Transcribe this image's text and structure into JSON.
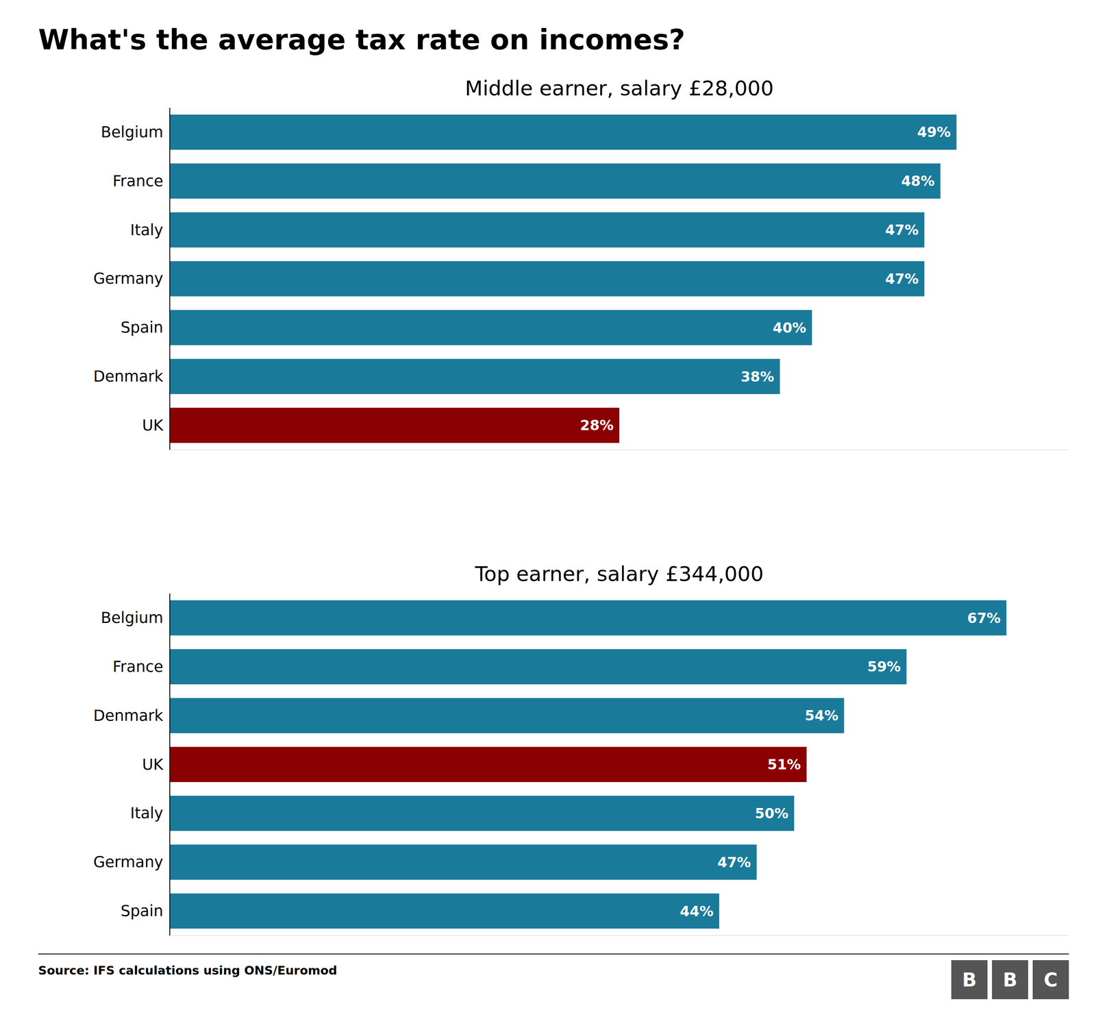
{
  "title": "What's the average tax rate on incomes?",
  "annotations": [
    "Source: IFS calculations using ONS/Euromod",
    "B",
    "B",
    "C"
  ],
  "chart_data": [
    {
      "type": "bar",
      "orientation": "horizontal",
      "subtitle": "Middle earner, salary £28,000",
      "categories": [
        "Belgium",
        "France",
        "Italy",
        "Germany",
        "Spain",
        "Denmark",
        "UK"
      ],
      "values": [
        49,
        48,
        47,
        47,
        40,
        38,
        28
      ],
      "value_labels": [
        "49%",
        "48%",
        "47%",
        "47%",
        "40%",
        "38%",
        "28%"
      ],
      "colors": [
        "#1a7a9a",
        "#1a7a9a",
        "#1a7a9a",
        "#1a7a9a",
        "#1a7a9a",
        "#1a7a9a",
        "#8b0000"
      ],
      "xlim": [
        0,
        56
      ],
      "xticks": [],
      "grid": false,
      "data_labels": true,
      "tick_labels": "y"
    },
    {
      "type": "bar",
      "orientation": "horizontal",
      "subtitle": "Top earner, salary £344,000",
      "categories": [
        "Belgium",
        "France",
        "Denmark",
        "UK",
        "Italy",
        "Germany",
        "Spain"
      ],
      "values": [
        67,
        59,
        54,
        51,
        50,
        47,
        44
      ],
      "value_labels": [
        "67%",
        "59%",
        "54%",
        "51%",
        "50%",
        "47%",
        "44%"
      ],
      "colors": [
        "#1a7a9a",
        "#1a7a9a",
        "#1a7a9a",
        "#8b0000",
        "#1a7a9a",
        "#1a7a9a",
        "#1a7a9a"
      ],
      "xlim": [
        0,
        72
      ],
      "xticks": [],
      "grid": false,
      "data_labels": true,
      "tick_labels": "y"
    }
  ]
}
